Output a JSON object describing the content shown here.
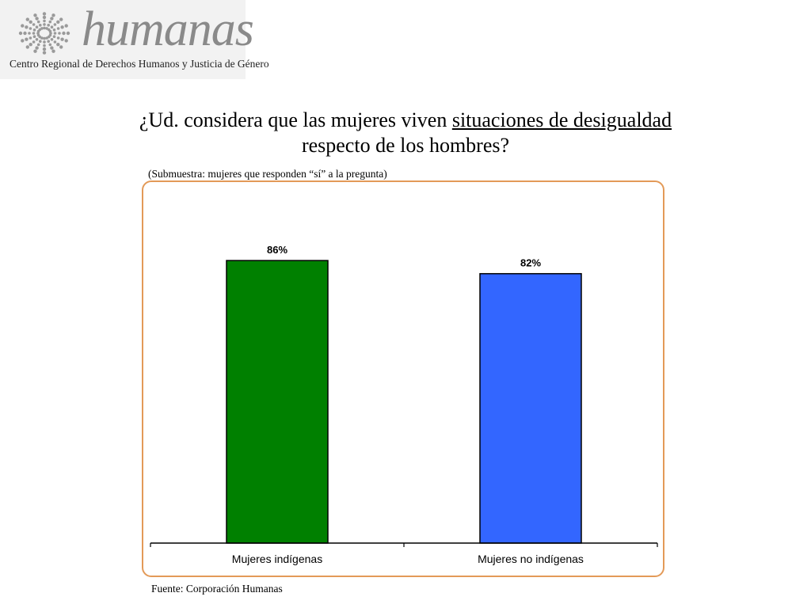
{
  "logo": {
    "wordmark": "humanas",
    "subtitle": "Centro Regional de Derechos Humanos y Justicia de Género"
  },
  "title": {
    "part1": "¿Ud. considera que las mujeres viven ",
    "underlined": "situaciones de desigualdad",
    "part2": "respecto de los hombres?"
  },
  "subtitle": "(Submuestra: mujeres que responden “sí” a la pregunta)",
  "source": "Fuente: Corporación Humanas",
  "colors": {
    "frame": "#e39a58",
    "bar1": "#008000",
    "bar2": "#3366ff"
  },
  "chart_data": {
    "type": "bar",
    "categories": [
      "Mujeres indígenas",
      "Mujeres no indígenas"
    ],
    "values": [
      86,
      82
    ],
    "labels": [
      "86%",
      "82%"
    ],
    "colors": [
      "#008000",
      "#3366ff"
    ],
    "ylim": [
      0,
      100
    ],
    "grid": false
  }
}
